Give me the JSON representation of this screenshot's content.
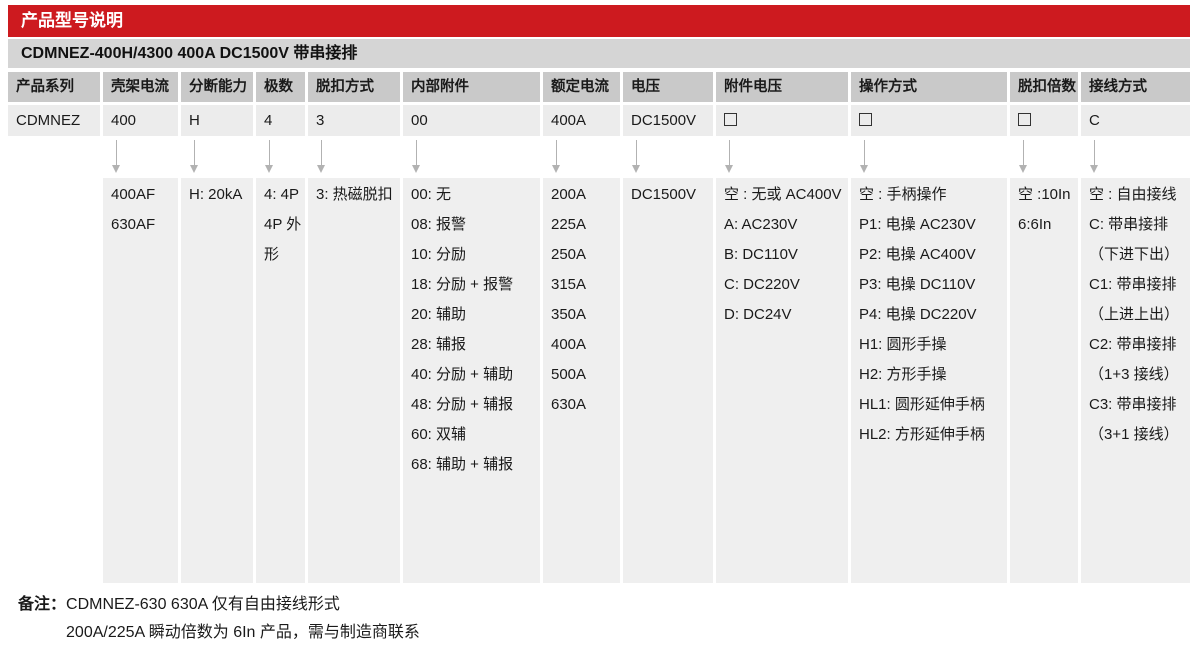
{
  "title": "产品型号说明",
  "subtitle": "CDMNEZ-400H/4300 400A DC1500V 带串接排",
  "colors": {
    "accent_red": "#cd1a1f",
    "header_gray": "#c9c9c9",
    "cell_gray": "#ececec",
    "options_gray": "#efefef",
    "subtitle_gray": "#d5d5d5"
  },
  "columns": [
    {
      "header": "产品系列",
      "value": "CDMNEZ",
      "arrow": false,
      "options": []
    },
    {
      "header": "壳架电流",
      "value": "400",
      "arrow": true,
      "options": [
        "400AF",
        "630AF"
      ]
    },
    {
      "header": "分断能力",
      "value": "H",
      "arrow": true,
      "options": [
        "H: 20kA"
      ]
    },
    {
      "header": "极数",
      "value": "4",
      "arrow": true,
      "options": [
        "4: 4P",
        "4P 外形"
      ]
    },
    {
      "header": "脱扣方式",
      "value": "3",
      "arrow": true,
      "options": [
        "3: 热磁脱扣"
      ]
    },
    {
      "header": "内部附件",
      "value": "00",
      "arrow": true,
      "options": [
        "00: 无",
        "08: 报警",
        "10: 分励",
        "18: 分励 + 报警",
        "20: 辅助",
        "28: 辅报",
        "40: 分励 + 辅助",
        "48: 分励 + 辅报",
        "60: 双辅",
        "68: 辅助 + 辅报"
      ]
    },
    {
      "header": "额定电流",
      "value": "400A",
      "arrow": true,
      "options": [
        "200A",
        "225A",
        "250A",
        "315A",
        "350A",
        "400A",
        "500A",
        "630A"
      ]
    },
    {
      "header": "电压",
      "value": "DC1500V",
      "arrow": true,
      "options": [
        "DC1500V"
      ]
    },
    {
      "header": "附件电压",
      "value": "□",
      "arrow": true,
      "options": [
        "空 : 无或 AC400V",
        "A: AC230V",
        "B: DC110V",
        "C: DC220V",
        "D: DC24V"
      ]
    },
    {
      "header": "操作方式",
      "value": "□",
      "arrow": true,
      "options": [
        "空 : 手柄操作",
        "P1: 电操 AC230V",
        "P2: 电操 AC400V",
        "P3: 电操 DC110V",
        "P4: 电操 DC220V",
        "H1: 圆形手操",
        "H2: 方形手操",
        "HL1: 圆形延伸手柄",
        "HL2: 方形延伸手柄"
      ]
    },
    {
      "header": "脱扣倍数",
      "value": "□",
      "arrow": true,
      "options": [
        "空 :10In",
        "6:6In"
      ]
    },
    {
      "header": "接线方式",
      "value": "C",
      "arrow": true,
      "options": [
        "空 : 自由接线",
        "C: 带串接排",
        "（下进下出）",
        "C1: 带串接排",
        "（上进上出）",
        "C2: 带串接排",
        "（1+3 接线）",
        "C3: 带串接排",
        "（3+1 接线）"
      ]
    }
  ],
  "notes": {
    "label": "备注：",
    "lines": [
      "CDMNEZ-630 630A 仅有自由接线形式",
      "200A/225A 瞬动倍数为 6In 产品，需与制造商联系"
    ]
  }
}
